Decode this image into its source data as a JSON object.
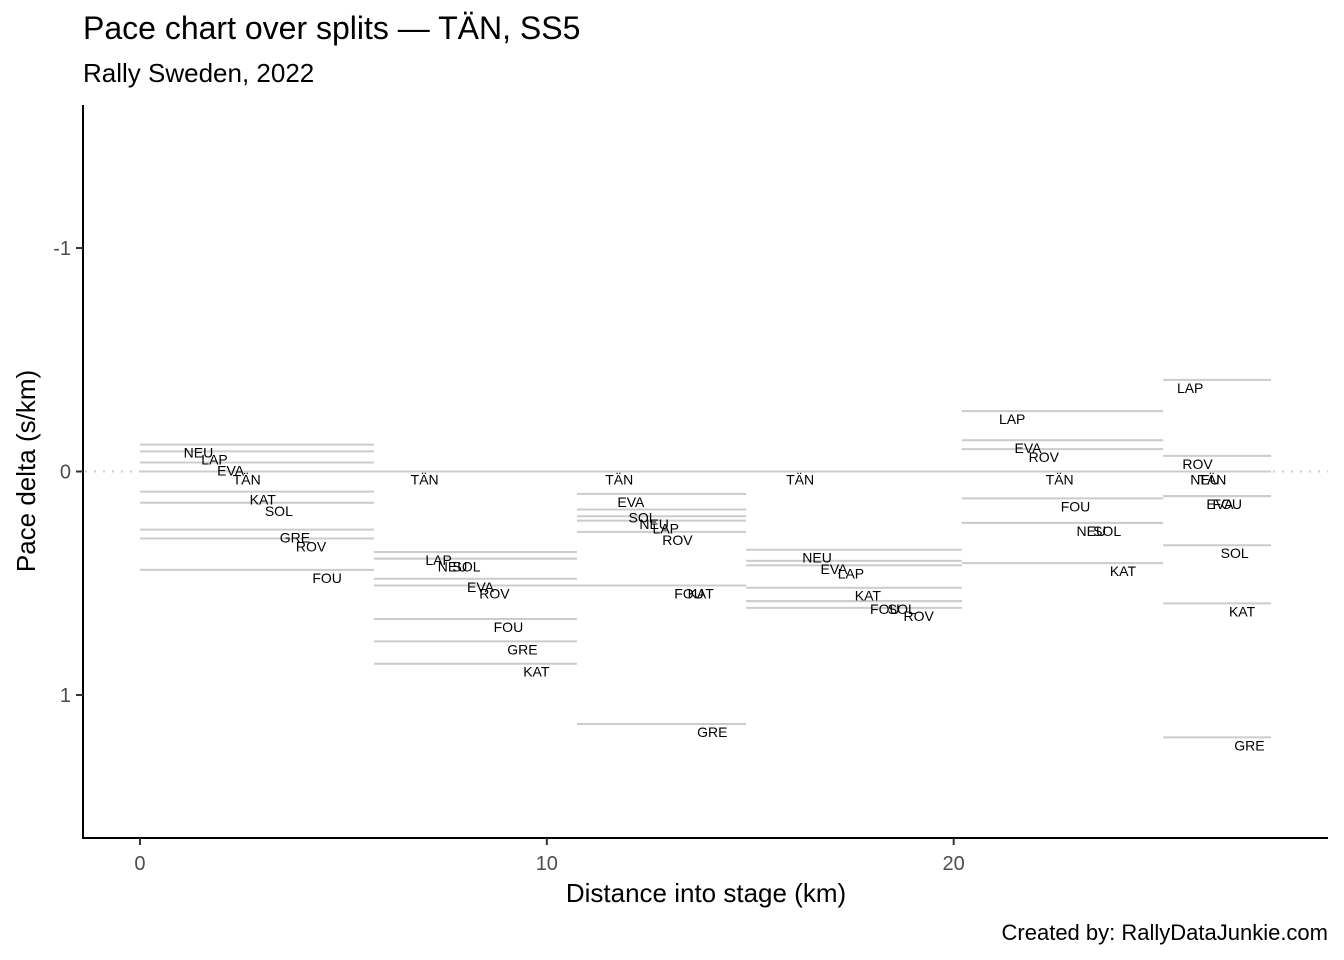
{
  "chart_data": {
    "type": "segment",
    "title": "Pace chart over splits — TÄN, SS5",
    "subtitle": "Rally Sweden, 2022",
    "caption": "Created by: RallyDataJunkie.com",
    "xlabel": "Distance into stage (km)",
    "ylabel": "Pace delta (s/km)",
    "xlim": [
      -1.4,
      29.2
    ],
    "ylim": [
      1.64,
      -1.64
    ],
    "y_reversed": true,
    "xticks": [
      0,
      10,
      20
    ],
    "yticks": [
      -1,
      0,
      1
    ],
    "reference_line": 0,
    "splits": [
      {
        "x_start": 0.0,
        "x_end": 5.75,
        "drivers": [
          {
            "code": "NEU",
            "pace": -0.12
          },
          {
            "code": "LAP",
            "pace": -0.09
          },
          {
            "code": "EVA",
            "pace": -0.04
          },
          {
            "code": "TÄN",
            "pace": 0.0
          },
          {
            "code": "KAT",
            "pace": 0.09
          },
          {
            "code": "SOL",
            "pace": 0.14
          },
          {
            "code": "GRE",
            "pace": 0.26
          },
          {
            "code": "ROV",
            "pace": 0.3
          },
          {
            "code": "FOU",
            "pace": 0.44
          }
        ]
      },
      {
        "x_start": 5.75,
        "x_end": 10.74,
        "drivers": [
          {
            "code": "TÄN",
            "pace": 0.0
          },
          {
            "code": "LAP",
            "pace": 0.36
          },
          {
            "code": "NEU",
            "pace": 0.39
          },
          {
            "code": "SOL",
            "pace": 0.39
          },
          {
            "code": "EVA",
            "pace": 0.48
          },
          {
            "code": "ROV",
            "pace": 0.51
          },
          {
            "code": "FOU",
            "pace": 0.66
          },
          {
            "code": "GRE",
            "pace": 0.76
          },
          {
            "code": "KAT",
            "pace": 0.86
          }
        ]
      },
      {
        "x_start": 10.74,
        "x_end": 14.9,
        "drivers": [
          {
            "code": "TÄN",
            "pace": 0.0
          },
          {
            "code": "EVA",
            "pace": 0.1
          },
          {
            "code": "SOL",
            "pace": 0.17
          },
          {
            "code": "NEU",
            "pace": 0.2
          },
          {
            "code": "LAP",
            "pace": 0.22
          },
          {
            "code": "ROV",
            "pace": 0.27
          },
          {
            "code": "FOU",
            "pace": 0.51
          },
          {
            "code": "KAT",
            "pace": 0.51
          },
          {
            "code": "GRE",
            "pace": 1.13
          }
        ]
      },
      {
        "x_start": 14.9,
        "x_end": 20.2,
        "drivers": [
          {
            "code": "TÄN",
            "pace": 0.0
          },
          {
            "code": "NEU",
            "pace": 0.35
          },
          {
            "code": "EVA",
            "pace": 0.4
          },
          {
            "code": "LAP",
            "pace": 0.42
          },
          {
            "code": "KAT",
            "pace": 0.52
          },
          {
            "code": "FOU",
            "pace": 0.58
          },
          {
            "code": "SOL",
            "pace": 0.58
          },
          {
            "code": "ROV",
            "pace": 0.61
          }
        ]
      },
      {
        "x_start": 20.2,
        "x_end": 25.15,
        "drivers": [
          {
            "code": "LAP",
            "pace": -0.27
          },
          {
            "code": "EVA",
            "pace": -0.14
          },
          {
            "code": "ROV",
            "pace": -0.1
          },
          {
            "code": "TÄN",
            "pace": 0.0
          },
          {
            "code": "FOU",
            "pace": 0.12
          },
          {
            "code": "NEU",
            "pace": 0.23
          },
          {
            "code": "SOL",
            "pace": 0.23
          },
          {
            "code": "KAT",
            "pace": 0.41
          }
        ]
      },
      {
        "x_start": 25.15,
        "x_end": 27.8,
        "drivers": [
          {
            "code": "LAP",
            "pace": -0.41
          },
          {
            "code": "ROV",
            "pace": -0.07
          },
          {
            "code": "NEU",
            "pace": 0.0
          },
          {
            "code": "TÄN",
            "pace": 0.0
          },
          {
            "code": "EVA",
            "pace": 0.11
          },
          {
            "code": "FOU",
            "pace": 0.11
          },
          {
            "code": "SOL",
            "pace": 0.33
          },
          {
            "code": "KAT",
            "pace": 0.59
          },
          {
            "code": "GRE",
            "pace": 1.19
          }
        ]
      }
    ]
  },
  "colors": {
    "segment": "#cccccc",
    "reference": "#cccccc",
    "axis": "#000000",
    "tick_text": "#4d4d4d",
    "text": "#000000"
  }
}
